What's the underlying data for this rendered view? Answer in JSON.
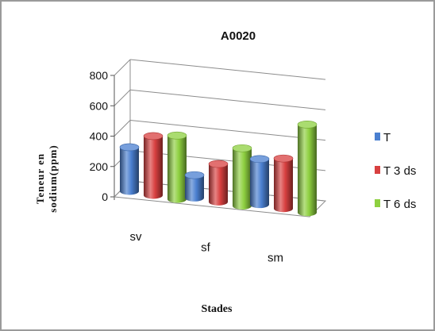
{
  "chart_data": {
    "type": "bar",
    "title": "A0020",
    "ylabel": "Teneur en sodium(ppm)",
    "ylabel_lines": [
      "Teneur en",
      "sodium(ppm)"
    ],
    "xlabel": "Stades",
    "categories": [
      "sv",
      "sf",
      "sm"
    ],
    "series": [
      {
        "name": "T",
        "values": [
          290,
          150,
          300
        ],
        "color": "#4a7fd0"
      },
      {
        "name": "T 3 ds",
        "values": [
          390,
          250,
          330
        ],
        "color": "#d84040"
      },
      {
        "name": "T 6 ds",
        "values": [
          420,
          380,
          580
        ],
        "color": "#8ed040"
      }
    ],
    "yticks": [
      0,
      200,
      400,
      600,
      800
    ],
    "ylim": [
      0,
      800
    ],
    "grid": true,
    "legend_position": "right",
    "style": "3d-cylinder"
  }
}
